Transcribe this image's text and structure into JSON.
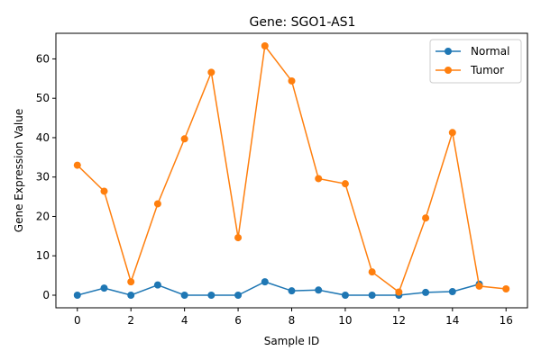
{
  "chart_data": {
    "type": "line",
    "title": "Gene: SGO1-AS1",
    "xlabel": "Sample ID",
    "ylabel": "Gene Expression Value",
    "xlim": [
      -0.8,
      16.8
    ],
    "ylim": [
      -3.2,
      66.5
    ],
    "xticks": [
      0,
      2,
      4,
      6,
      8,
      10,
      12,
      14,
      16
    ],
    "yticks": [
      0,
      10,
      20,
      30,
      40,
      50,
      60
    ],
    "grid": false,
    "legend_position": "top-right",
    "series": [
      {
        "name": "Normal",
        "color": "#1f77b4",
        "x": [
          0,
          1,
          2,
          3,
          4,
          5,
          6,
          7,
          8,
          9,
          10,
          11,
          12,
          13,
          14,
          15
        ],
        "values": [
          0.0,
          1.8,
          0.0,
          2.6,
          0.0,
          0.0,
          0.0,
          3.4,
          1.1,
          1.3,
          0.0,
          0.0,
          0.0,
          0.7,
          0.9,
          2.8
        ]
      },
      {
        "name": "Tumor",
        "color": "#ff7f0e",
        "x": [
          0,
          1,
          2,
          3,
          4,
          5,
          6,
          7,
          8,
          9,
          10,
          11,
          12,
          13,
          14,
          15,
          16
        ],
        "values": [
          33.0,
          26.4,
          3.4,
          23.2,
          39.7,
          56.6,
          14.6,
          63.3,
          54.4,
          29.6,
          28.3,
          5.9,
          0.8,
          19.6,
          41.3,
          2.3,
          1.6
        ]
      }
    ]
  }
}
